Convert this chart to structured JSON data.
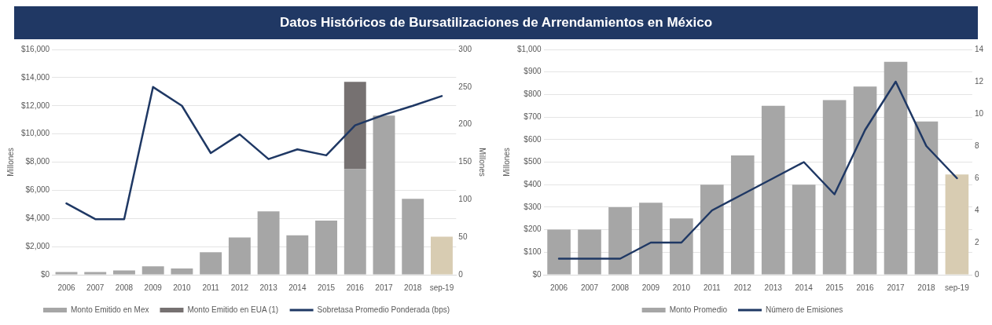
{
  "chart_data": [
    {
      "type": "bar",
      "title": "Datos Históricos de Bursatilizaciones de Arrendamientos en México",
      "ylabel": "Millones",
      "y2label": "Millones",
      "categories": [
        "2006",
        "2007",
        "2008",
        "2009",
        "2010",
        "2011",
        "2012",
        "2013",
        "2014",
        "2015",
        "2016",
        "2017",
        "2018",
        "sep-19"
      ],
      "stacked": true,
      "series": [
        {
          "name": "Monto Emitido en Mex",
          "color": "#a6a6a6",
          "colors": [
            "#a6a6a6",
            "#a6a6a6",
            "#a6a6a6",
            "#a6a6a6",
            "#a6a6a6",
            "#a6a6a6",
            "#a6a6a6",
            "#a6a6a6",
            "#a6a6a6",
            "#a6a6a6",
            "#a6a6a6",
            "#a6a6a6",
            "#a6a6a6",
            "#d8ccb2"
          ],
          "values": [
            200,
            200,
            300,
            600,
            450,
            1600,
            2650,
            4500,
            2800,
            3850,
            7500,
            11300,
            5400,
            2700
          ]
        },
        {
          "name": "Monto Emitido en EUA (1)",
          "color": "#767171",
          "values": [
            null,
            null,
            null,
            null,
            null,
            null,
            null,
            null,
            null,
            null,
            6200,
            null,
            null,
            null
          ]
        },
        {
          "name": "Sobretasa Promedio Ponderada (bps)",
          "type": "line",
          "axis": "y2",
          "color": "#1f3864",
          "values": [
            95,
            74,
            74,
            250,
            225,
            162,
            187,
            154,
            167,
            159,
            199,
            213,
            225,
            238
          ]
        }
      ],
      "ylim": [
        0,
        16000
      ],
      "yticks": [
        {
          "value": 0,
          "label": "$0"
        },
        {
          "value": 2000,
          "label": "$2,000"
        },
        {
          "value": 4000,
          "label": "$4,000"
        },
        {
          "value": 6000,
          "label": "$6,000"
        },
        {
          "value": 8000,
          "label": "$8,000"
        },
        {
          "value": 10000,
          "label": "$10,000"
        },
        {
          "value": 12000,
          "label": "$12,000"
        },
        {
          "value": 14000,
          "label": "$14,000"
        },
        {
          "value": 16000,
          "label": "$16,000"
        }
      ],
      "y2lim": [
        0,
        300
      ],
      "y2ticks": [
        0,
        50,
        100,
        150,
        200,
        250,
        300
      ],
      "grid": "y",
      "legend": "bottom",
      "marker": "none"
    },
    {
      "type": "bar",
      "ylabel": "Millones",
      "categories": [
        "2006",
        "2007",
        "2008",
        "2009",
        "2010",
        "2011",
        "2012",
        "2013",
        "2014",
        "2015",
        "2016",
        "2017",
        "2018",
        "sep-19"
      ],
      "series": [
        {
          "name": "Monto Promedio",
          "color": "#a6a6a6",
          "colors": [
            "#a6a6a6",
            "#a6a6a6",
            "#a6a6a6",
            "#a6a6a6",
            "#a6a6a6",
            "#a6a6a6",
            "#a6a6a6",
            "#a6a6a6",
            "#a6a6a6",
            "#a6a6a6",
            "#a6a6a6",
            "#a6a6a6",
            "#a6a6a6",
            "#d8ccb2"
          ],
          "values": [
            200,
            200,
            300,
            320,
            250,
            400,
            530,
            750,
            400,
            775,
            835,
            945,
            680,
            445
          ]
        },
        {
          "name": "Número de Emisiones",
          "type": "line",
          "axis": "y2",
          "color": "#1f3864",
          "values": [
            1,
            1,
            1,
            2,
            2,
            4,
            5,
            6,
            7,
            5,
            9,
            12,
            8,
            6
          ]
        }
      ],
      "ylim": [
        0,
        1000
      ],
      "yticks": [
        {
          "value": 0,
          "label": "$0"
        },
        {
          "value": 100,
          "label": "$100"
        },
        {
          "value": 200,
          "label": "$200"
        },
        {
          "value": 300,
          "label": "$300"
        },
        {
          "value": 400,
          "label": "$400"
        },
        {
          "value": 500,
          "label": "$500"
        },
        {
          "value": 600,
          "label": "$600"
        },
        {
          "value": 700,
          "label": "$700"
        },
        {
          "value": 800,
          "label": "$800"
        },
        {
          "value": 900,
          "label": "$900"
        },
        {
          "value": 1000,
          "label": "$1,000"
        }
      ],
      "y2lim": [
        0,
        14
      ],
      "y2ticks": [
        0,
        2,
        4,
        6,
        8,
        10,
        12,
        14
      ],
      "grid": "y",
      "legend": "bottom",
      "marker": "none"
    }
  ]
}
